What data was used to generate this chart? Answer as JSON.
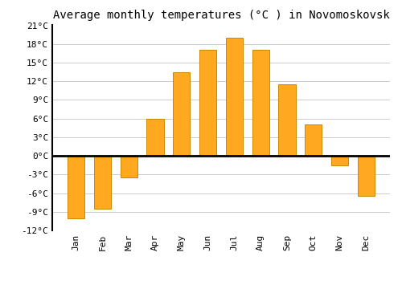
{
  "title": "Average monthly temperatures (°C ) in Novomoskovsk",
  "months": [
    "Jan",
    "Feb",
    "Mar",
    "Apr",
    "May",
    "Jun",
    "Jul",
    "Aug",
    "Sep",
    "Oct",
    "Nov",
    "Dec"
  ],
  "values": [
    -10,
    -8.5,
    -3.5,
    6,
    13.5,
    17,
    19,
    17,
    11.5,
    5,
    -1.5,
    -6.5
  ],
  "bar_color": "#FFA820",
  "bar_edge_color": "#CC8800",
  "background_color": "#FFFFFF",
  "grid_color": "#CCCCCC",
  "ylim": [
    -12,
    21
  ],
  "yticks": [
    -12,
    -9,
    -6,
    -3,
    0,
    3,
    6,
    9,
    12,
    15,
    18,
    21
  ],
  "ytick_labels": [
    "-12°C",
    "-9°C",
    "-6°C",
    "-3°C",
    "0°C",
    "3°C",
    "6°C",
    "9°C",
    "12°C",
    "15°C",
    "18°C",
    "21°C"
  ],
  "zero_line_color": "#000000",
  "title_fontsize": 10,
  "tick_fontsize": 8,
  "spine_color": "#000000"
}
